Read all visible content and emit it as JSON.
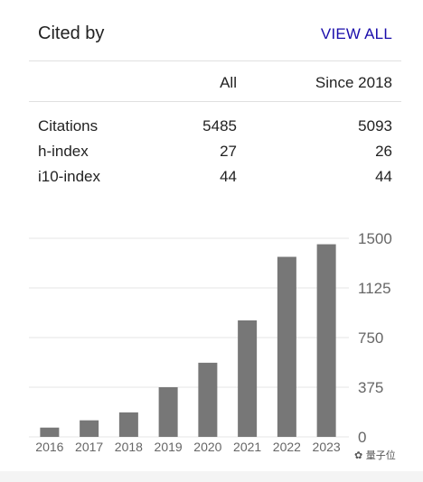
{
  "header": {
    "title": "Cited by",
    "view_all_label": "VIEW ALL"
  },
  "table": {
    "columns": [
      "All",
      "Since 2018"
    ],
    "rows": [
      {
        "label": "Citations",
        "all": "5485",
        "since": "5093"
      },
      {
        "label": "h-index",
        "all": "27",
        "since": "26"
      },
      {
        "label": "i10-index",
        "all": "44",
        "since": "44"
      }
    ]
  },
  "watermark": "量子位",
  "chart_data": {
    "type": "bar",
    "categories": [
      "2016",
      "2017",
      "2018",
      "2019",
      "2020",
      "2021",
      "2022",
      "2023"
    ],
    "values": [
      70,
      125,
      185,
      375,
      560,
      880,
      1360,
      1455
    ],
    "ylim": [
      0,
      1500
    ],
    "yticks": [
      0,
      375,
      750,
      1125,
      1500
    ],
    "grid": true,
    "colors": {
      "bar": "#777777",
      "grid": "#e6e6e6",
      "axis_text": "#666666"
    }
  }
}
